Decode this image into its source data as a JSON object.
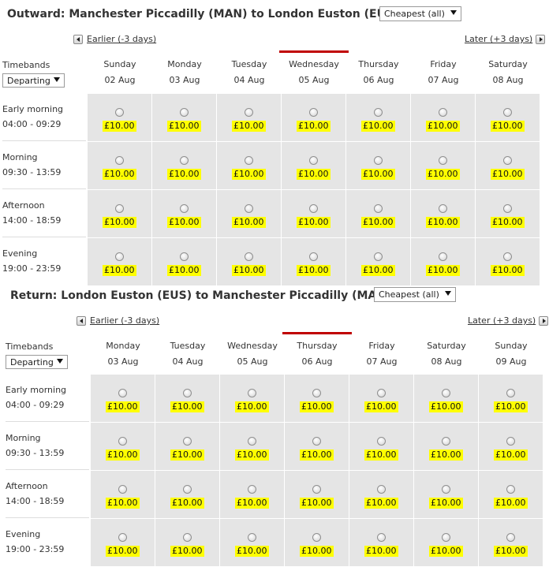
{
  "outward": {
    "title": "Outward: Manchester Piccadilly (MAN) to London Euston (EUS)",
    "fare_select": "Cheapest (all)",
    "earlier": "Earlier (-3 days)",
    "later": "Later (+3 days)",
    "timebands_label": "Timebands",
    "timeband_select": "Departing",
    "selected_day_index": 3,
    "days": [
      {
        "name": "Sunday",
        "date": "02 Aug"
      },
      {
        "name": "Monday",
        "date": "03 Aug"
      },
      {
        "name": "Tuesday",
        "date": "04 Aug"
      },
      {
        "name": "Wednesday",
        "date": "05 Aug"
      },
      {
        "name": "Thursday",
        "date": "06 Aug"
      },
      {
        "name": "Friday",
        "date": "07 Aug"
      },
      {
        "name": "Saturday",
        "date": "08 Aug"
      }
    ],
    "bands": [
      {
        "name": "Early morning",
        "range": "04:00 - 09:29",
        "prices": [
          "£10.00",
          "£10.00",
          "£10.00",
          "£10.00",
          "£10.00",
          "£10.00",
          "£10.00"
        ]
      },
      {
        "name": "Morning",
        "range": "09:30 - 13:59",
        "prices": [
          "£10.00",
          "£10.00",
          "£10.00",
          "£10.00",
          "£10.00",
          "£10.00",
          "£10.00"
        ]
      },
      {
        "name": "Afternoon",
        "range": "14:00 - 18:59",
        "prices": [
          "£10.00",
          "£10.00",
          "£10.00",
          "£10.00",
          "£10.00",
          "£10.00",
          "£10.00"
        ]
      },
      {
        "name": "Evening",
        "range": "19:00 - 23:59",
        "prices": [
          "£10.00",
          "£10.00",
          "£10.00",
          "£10.00",
          "£10.00",
          "£10.00",
          "£10.00"
        ]
      }
    ]
  },
  "return": {
    "title": "Return: London Euston (EUS) to Manchester Piccadilly (MAN)",
    "fare_select": "Cheapest (all)",
    "earlier": "Earlier (-3 days)",
    "later": "Later (+3 days)",
    "timebands_label": "Timebands",
    "timeband_select": "Departing",
    "selected_day_index": 3,
    "days": [
      {
        "name": "Monday",
        "date": "03 Aug"
      },
      {
        "name": "Tuesday",
        "date": "04 Aug"
      },
      {
        "name": "Wednesday",
        "date": "05 Aug"
      },
      {
        "name": "Thursday",
        "date": "06 Aug"
      },
      {
        "name": "Friday",
        "date": "07 Aug"
      },
      {
        "name": "Saturday",
        "date": "08 Aug"
      },
      {
        "name": "Sunday",
        "date": "09 Aug"
      }
    ],
    "bands": [
      {
        "name": "Early morning",
        "range": "04:00 - 09:29",
        "prices": [
          "£10.00",
          "£10.00",
          "£10.00",
          "£10.00",
          "£10.00",
          "£10.00",
          "£10.00"
        ]
      },
      {
        "name": "Morning",
        "range": "09:30 - 13:59",
        "prices": [
          "£10.00",
          "£10.00",
          "£10.00",
          "£10.00",
          "£10.00",
          "£10.00",
          "£10.00"
        ]
      },
      {
        "name": "Afternoon",
        "range": "14:00 - 18:59",
        "prices": [
          "£10.00",
          "£10.00",
          "£10.00",
          "£10.00",
          "£10.00",
          "£10.00",
          "£10.00"
        ]
      },
      {
        "name": "Evening",
        "range": "19:00 - 23:59",
        "prices": [
          "£10.00",
          "£10.00",
          "£10.00",
          "£10.00",
          "£10.00",
          "£10.00",
          "£10.00"
        ]
      }
    ]
  },
  "colors": {
    "price_highlight": "#ffff00",
    "selected_day_bar": "#c00000",
    "cell_background": "#e5e5e5"
  }
}
